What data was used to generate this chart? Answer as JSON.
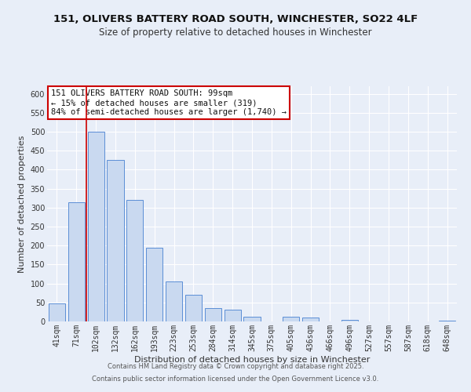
{
  "title": "151, OLIVERS BATTERY ROAD SOUTH, WINCHESTER, SO22 4LF",
  "subtitle": "Size of property relative to detached houses in Winchester",
  "xlabel": "Distribution of detached houses by size in Winchester",
  "ylabel": "Number of detached properties",
  "categories": [
    "41sqm",
    "71sqm",
    "102sqm",
    "132sqm",
    "162sqm",
    "193sqm",
    "223sqm",
    "253sqm",
    "284sqm",
    "314sqm",
    "345sqm",
    "375sqm",
    "405sqm",
    "436sqm",
    "466sqm",
    "496sqm",
    "527sqm",
    "557sqm",
    "587sqm",
    "618sqm",
    "648sqm"
  ],
  "values": [
    47,
    315,
    500,
    425,
    320,
    195,
    105,
    70,
    35,
    32,
    13,
    0,
    13,
    10,
    0,
    4,
    0,
    0,
    0,
    0,
    2
  ],
  "bar_color": "#c9d9f0",
  "bar_edge_color": "#5b8ed6",
  "vline_color": "#cc0000",
  "vline_x_index": 2,
  "annotation_text": "151 OLIVERS BATTERY ROAD SOUTH: 99sqm\n← 15% of detached houses are smaller (319)\n84% of semi-detached houses are larger (1,740) →",
  "annotation_box_facecolor": "#ffffff",
  "annotation_box_edgecolor": "#cc0000",
  "ylim": [
    0,
    620
  ],
  "yticks": [
    0,
    50,
    100,
    150,
    200,
    250,
    300,
    350,
    400,
    450,
    500,
    550,
    600
  ],
  "background_color": "#e8eef8",
  "grid_color": "#ffffff",
  "footer_line1": "Contains HM Land Registry data © Crown copyright and database right 2025.",
  "footer_line2": "Contains public sector information licensed under the Open Government Licence v3.0.",
  "title_fontsize": 9.5,
  "subtitle_fontsize": 8.5,
  "axis_label_fontsize": 8,
  "tick_fontsize": 7,
  "annotation_fontsize": 7.5,
  "footer_fontsize": 6.0
}
